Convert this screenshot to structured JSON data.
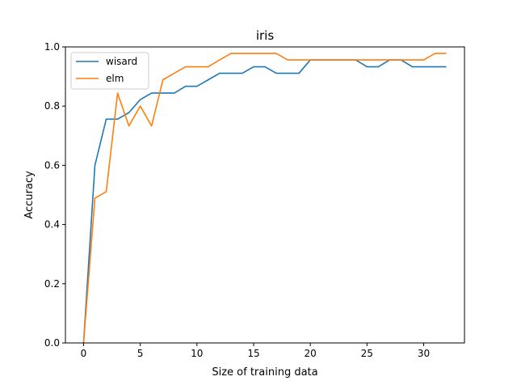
{
  "chart_data": {
    "type": "line",
    "title": "iris",
    "xlabel": "Size of training data",
    "ylabel": "Accuracy",
    "xlim": [
      -1.6,
      33.6
    ],
    "ylim": [
      0.0,
      1.0
    ],
    "xticks": [
      0,
      5,
      10,
      15,
      20,
      25,
      30
    ],
    "yticks": [
      0.0,
      0.2,
      0.4,
      0.6,
      0.8,
      1.0
    ],
    "ytick_labels": [
      "0.0",
      "0.2",
      "0.4",
      "0.6",
      "0.8",
      "1.0"
    ],
    "grid": false,
    "legend_position": "upper-left",
    "x": [
      0,
      1,
      2,
      3,
      4,
      5,
      6,
      7,
      8,
      9,
      10,
      11,
      12,
      13,
      14,
      15,
      16,
      17,
      18,
      19,
      20,
      21,
      22,
      23,
      24,
      25,
      26,
      27,
      28,
      29,
      30,
      31,
      32
    ],
    "series": [
      {
        "name": "wisard",
        "color": "#1f77b4",
        "values": [
          0.0,
          0.6,
          0.756,
          0.756,
          0.778,
          0.822,
          0.844,
          0.844,
          0.844,
          0.867,
          0.867,
          0.889,
          0.911,
          0.911,
          0.911,
          0.933,
          0.933,
          0.911,
          0.911,
          0.911,
          0.956,
          0.956,
          0.956,
          0.956,
          0.956,
          0.933,
          0.933,
          0.956,
          0.956,
          0.933,
          0.933,
          0.933,
          0.933
        ]
      },
      {
        "name": "elm",
        "color": "#ff7f0e",
        "values": [
          0.0,
          0.489,
          0.511,
          0.844,
          0.733,
          0.8,
          0.733,
          0.889,
          0.911,
          0.933,
          0.933,
          0.933,
          0.956,
          0.978,
          0.978,
          0.978,
          0.978,
          0.978,
          0.956,
          0.956,
          0.956,
          0.956,
          0.956,
          0.956,
          0.956,
          0.956,
          0.956,
          0.956,
          0.956,
          0.956,
          0.956,
          0.978,
          0.978
        ]
      }
    ]
  }
}
